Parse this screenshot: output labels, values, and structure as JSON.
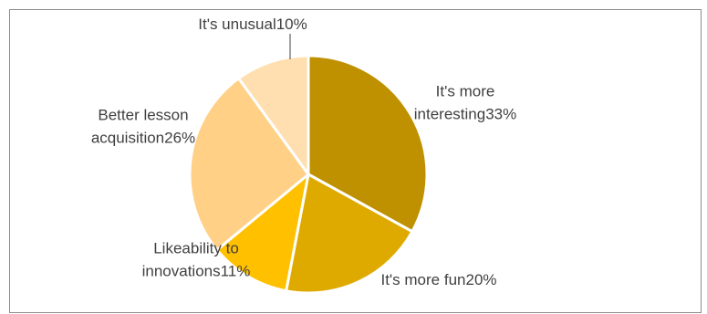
{
  "chart_data": {
    "type": "pie",
    "title": "",
    "slices": [
      {
        "label": "It's more interesting",
        "value": 33,
        "display": "33%",
        "color": "#bf9000"
      },
      {
        "label": "It's more fun",
        "value": 20,
        "display": "20%",
        "color": "#dfaa00"
      },
      {
        "label": "Likeability to innovations",
        "value": 11,
        "display": "11%",
        "color": "#ffc000"
      },
      {
        "label": "Better lesson acquisition",
        "value": 26,
        "display": "26%",
        "color": "#ffd085"
      },
      {
        "label": "It's unusual",
        "value": 10,
        "display": "10%",
        "color": "#ffdfb0"
      }
    ],
    "label_lines": [
      [
        "It's more",
        "interesting33%"
      ],
      [
        "It's more fun20%"
      ],
      [
        "Likeability to",
        "innovations11%"
      ],
      [
        "Better lesson",
        "acquisition26%"
      ],
      [
        "It's unusual10%"
      ]
    ],
    "legend": "none"
  }
}
